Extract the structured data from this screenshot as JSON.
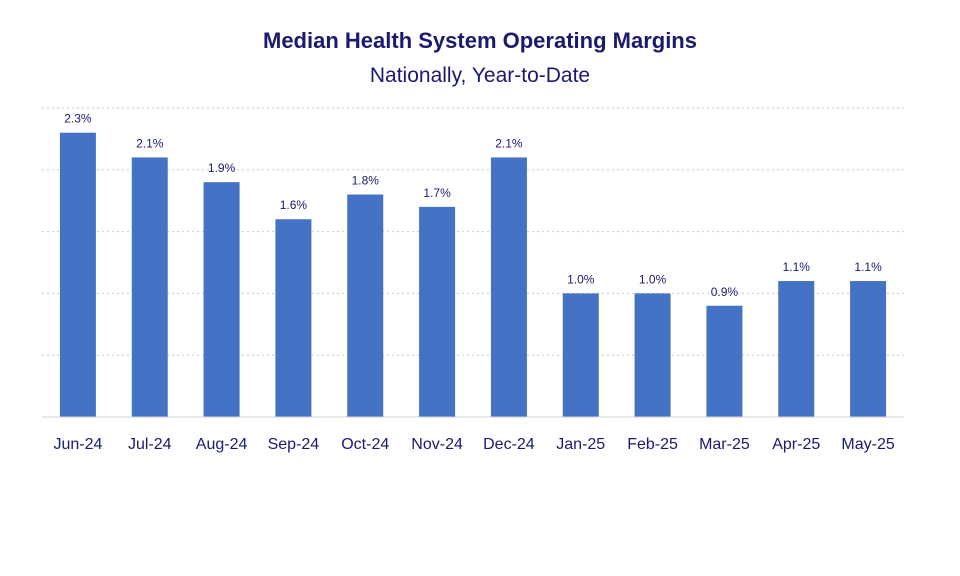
{
  "chart_data": {
    "type": "bar",
    "title": "Median Health System Operating Margins",
    "subtitle": "Nationally, Year-to-Date",
    "categories": [
      "Jun-24",
      "Jul-24",
      "Aug-24",
      "Sep-24",
      "Oct-24",
      "Nov-24",
      "Dec-24",
      "Jan-25",
      "Feb-25",
      "Mar-25",
      "Apr-25",
      "May-25"
    ],
    "values": [
      2.3,
      2.1,
      1.9,
      1.6,
      1.8,
      1.7,
      2.1,
      1.0,
      1.0,
      0.9,
      1.1,
      1.1
    ],
    "data_labels": [
      "2.3%",
      "2.1%",
      "1.9%",
      "1.6%",
      "1.8%",
      "1.7%",
      "2.1%",
      "1.0%",
      "1.0%",
      "0.9%",
      "1.1%",
      "1.1%"
    ],
    "xlabel": "",
    "ylabel": "",
    "ylim": [
      0,
      2.5
    ],
    "grid": true,
    "grid_style": "dotted",
    "y_tick_labels_visible": false,
    "legend": "none",
    "colors": {
      "bar": "#4472C4",
      "text": "#1a1a6e",
      "grid": "#c8c8c8",
      "axis": "#d0d0d0"
    }
  }
}
